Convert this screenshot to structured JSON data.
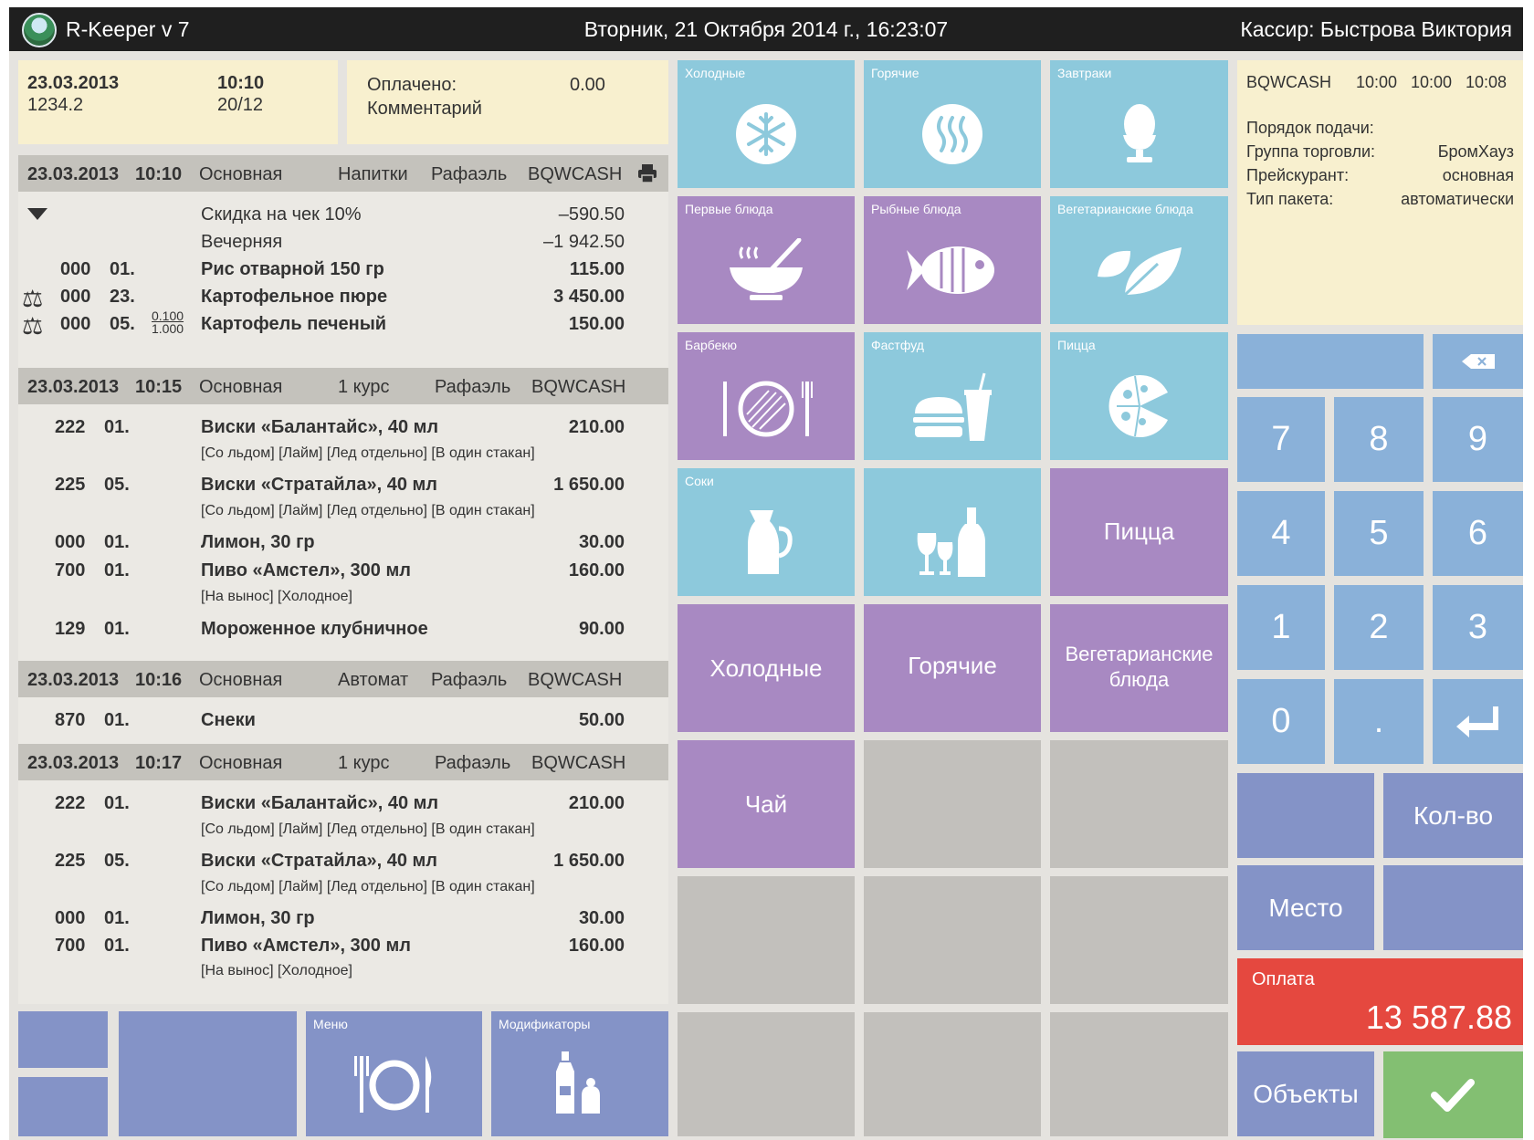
{
  "title_bar": {
    "app_name": "R-Keeper v 7",
    "datetime": "Вторник, 21 Октября 2014 г., 16:23:07",
    "cashier": "Кассир: Быстрова Виктория"
  },
  "order_header": {
    "date": "23.03.2013",
    "order_no": "1234.2",
    "time": "10:10",
    "table": "20/12",
    "paid_label": "Оплачено:",
    "paid_value": "0.00",
    "comment_label": "Комментарий"
  },
  "check": {
    "groups": [
      {
        "date": "23.03.2013",
        "time": "10:10",
        "type": "Основная",
        "cat": "Напитки",
        "waiter": "Рафаэль",
        "station": "BQWCASH"
      },
      {
        "date": "23.03.2013",
        "time": "10:15",
        "type": "Основная",
        "cat": "1 курс",
        "waiter": "Рафаэль",
        "station": "BQWCASH"
      },
      {
        "date": "23.03.2013",
        "time": "10:16",
        "type": "Основная",
        "cat": "Автомат",
        "waiter": "Рафаэль",
        "station": "BQWCASH"
      },
      {
        "date": "23.03.2013",
        "time": "10:17",
        "type": "Основная",
        "cat": "1 курс",
        "waiter": "Рафаэль",
        "station": "BQWCASH"
      }
    ],
    "discounts": [
      {
        "name": "Скидка на чек 10%",
        "value": "–590.50"
      },
      {
        "name": "Вечерняя",
        "value": "–1 942.50"
      }
    ],
    "g1_items": [
      {
        "code": "000",
        "qty": "01.",
        "name": "Рис отварной 150 гр",
        "price": "115.00"
      },
      {
        "code": "000",
        "qty": "23.",
        "name": "Картофельное пюре",
        "price": "3 450.00"
      },
      {
        "code": "000",
        "qty": "05.",
        "frac_top": "0.100",
        "frac_bot": "1.000",
        "name": "Картофель печеный",
        "price": "150.00"
      }
    ],
    "g2_items": [
      {
        "code": "222",
        "qty": "01.",
        "name": "Виски «Балантайс», 40 мл",
        "price": "210.00",
        "mods": "[Со льдом] [Лайм] [Лед отдельно] [В один стакан]"
      },
      {
        "code": "225",
        "qty": "05.",
        "name": "Виски «Стратайла», 40 мл",
        "price": "1 650.00",
        "mods": "[Со льдом] [Лайм] [Лед отдельно] [В один стакан]"
      },
      {
        "code": "000",
        "qty": "01.",
        "name": "Лимон, 30 гр",
        "price": "30.00"
      },
      {
        "code": "700",
        "qty": "01.",
        "name": "Пиво «Амстел», 300 мл",
        "price": "160.00",
        "mods": "[На вынос] [Холодное]"
      },
      {
        "code": "129",
        "qty": "01.",
        "name": "Мороженное клубничное",
        "price": "90.00"
      }
    ],
    "g3_items": [
      {
        "code": "870",
        "qty": "01.",
        "name": "Снеки",
        "price": "50.00"
      }
    ],
    "g4_items": [
      {
        "code": "222",
        "qty": "01.",
        "name": "Виски «Балантайс», 40 мл",
        "price": "210.00",
        "mods": "[Со льдом] [Лайм] [Лед отдельно] [В один стакан]"
      },
      {
        "code": "225",
        "qty": "05.",
        "name": "Виски «Стратайла», 40 мл",
        "price": "1 650.00",
        "mods": "[Со льдом] [Лайм] [Лед отдельно] [В один стакан]"
      },
      {
        "code": "000",
        "qty": "01.",
        "name": "Лимон, 30 гр",
        "price": "30.00"
      },
      {
        "code": "700",
        "qty": "01.",
        "name": "Пиво «Амстел», 300 мл",
        "price": "160.00",
        "mods": "[На вынос] [Холодное]"
      }
    ]
  },
  "bottom_buttons": {
    "menu": "Меню",
    "modifiers": "Модификаторы"
  },
  "tiles": {
    "cold": "Холодные",
    "hot": "Горячие",
    "breakfast": "Завтраки",
    "first_dishes": "Первые блюда",
    "fish_dishes": "Рыбные блюда",
    "veg_dishes": "Вегетарианские блюда",
    "bbq": "Барбекю",
    "fastfood": "Фастфуд",
    "pizza": "Пицца",
    "juices": "Соки",
    "pizza_big": "Пицца",
    "cold_big": "Холодные",
    "hot_big": "Горячие",
    "veg_big_1": "Вегетарианские",
    "veg_big_2": "блюда",
    "tea": "Чай"
  },
  "info": {
    "station": "BQWCASH",
    "t1": "10:00",
    "t2": "10:00",
    "t3": "10:08",
    "order_label": "Порядок подачи:",
    "trade_group_label": "Группа торговли:",
    "trade_group_value": "БромХауз",
    "price_list_label": "Прейскурант:",
    "price_list_value": "основная",
    "package_label": "Тип пакета:",
    "package_value": "автоматически"
  },
  "keypad": {
    "k7": "7",
    "k8": "8",
    "k9": "9",
    "k4": "4",
    "k5": "5",
    "k6": "6",
    "k1": "1",
    "k2": "2",
    "k3": "3",
    "k0": "0",
    "kdot": "."
  },
  "actions": {
    "qty": "Кол-во",
    "place": "Место",
    "pay_label": "Оплата",
    "pay_total": "13 587.88",
    "objects": "Объекты"
  },
  "colors": {
    "tile_blue": "#8dc9dc",
    "tile_purple": "#a889c2",
    "tile_grey": "#c2c0bc",
    "keypad": "#8ab1d9",
    "action": "#8493c7",
    "pay": "#e5483f",
    "ok": "#83bf72"
  }
}
